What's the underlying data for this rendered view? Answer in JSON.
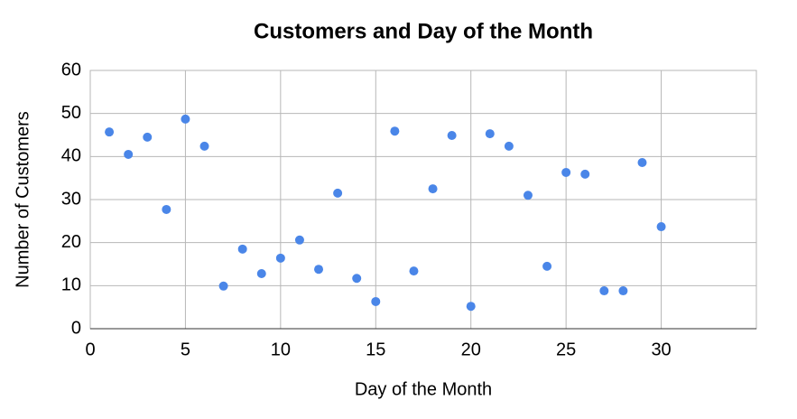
{
  "chart_data": {
    "type": "scatter",
    "title": "Customers and Day of the Month",
    "x_label": "Day of the Month",
    "y_label": "Number of Customers",
    "series": [
      {
        "name": "Customers",
        "color": "#4a86e8",
        "x": [
          1,
          2,
          3,
          4,
          5,
          6,
          7,
          8,
          9,
          10,
          11,
          12,
          13,
          14,
          15,
          16,
          17,
          18,
          19,
          20,
          21,
          22,
          23,
          24,
          25,
          26,
          27,
          28,
          29,
          30
        ],
        "values": [
          45.7,
          40.5,
          44.5,
          27.7,
          48.7,
          42.4,
          9.9,
          18.5,
          12.8,
          16.4,
          20.6,
          13.8,
          31.5,
          11.7,
          6.3,
          45.9,
          13.4,
          32.5,
          44.9,
          5.2,
          45.3,
          42.4,
          31,
          14.5,
          36.3,
          35.9,
          8.8,
          8.8,
          38.6,
          23.7
        ]
      }
    ],
    "xlim": [
      0,
      35
    ],
    "xticks": [
      0,
      5,
      10,
      15,
      20,
      25,
      30
    ],
    "ylim": [
      0,
      60
    ],
    "yticks": [
      0,
      10,
      20,
      30,
      40,
      50,
      60
    ],
    "grid": true
  }
}
